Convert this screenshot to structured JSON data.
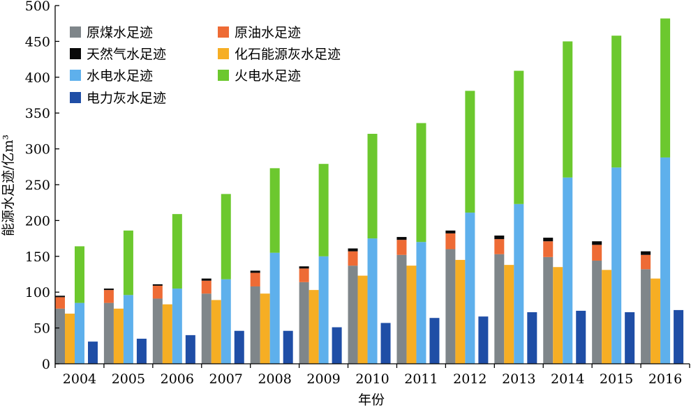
{
  "chart_data": {
    "type": "bar",
    "categories": [
      "2004",
      "2005",
      "2006",
      "2007",
      "2008",
      "2009",
      "2010",
      "2011",
      "2012",
      "2013",
      "2014",
      "2015",
      "2016"
    ],
    "xlabel": "年份",
    "ylabel": "能源水足迹/亿m³",
    "ylim": [
      0,
      500
    ],
    "yticks": [
      0,
      50,
      100,
      150,
      200,
      250,
      300,
      350,
      400,
      450,
      500
    ],
    "grid": false,
    "legend_position": "top-left",
    "legend": [
      {
        "key": "coal",
        "label": "原煤水足迹",
        "color": "#7f868a"
      },
      {
        "key": "oil",
        "label": "原油水足迹",
        "color": "#ee6b35"
      },
      {
        "key": "gas",
        "label": "天然气水足迹",
        "color": "#0a0a0a"
      },
      {
        "key": "fossil_grey",
        "label": "化石能源灰水足迹",
        "color": "#f6ae24"
      },
      {
        "key": "hydro",
        "label": "水电水足迹",
        "color": "#5eb0ec"
      },
      {
        "key": "thermal",
        "label": "火电水足迹",
        "color": "#6cc82e"
      },
      {
        "key": "power_grey",
        "label": "电力灰水足迹",
        "color": "#1f4ea6"
      }
    ],
    "series": [
      {
        "name": "原煤水足迹",
        "values": [
          77,
          85,
          91,
          98,
          108,
          114,
          137,
          152,
          160,
          153,
          149,
          144,
          132
        ]
      },
      {
        "name": "原油水足迹",
        "values": [
          16,
          18,
          18,
          18,
          19,
          19,
          20,
          21,
          22,
          21,
          22,
          22,
          20
        ]
      },
      {
        "name": "天然气水足迹",
        "values": [
          2,
          2,
          2,
          3,
          3,
          3,
          4,
          4,
          4,
          5,
          5,
          5,
          5
        ]
      },
      {
        "name": "化石能源灰水足迹",
        "values": [
          70,
          77,
          83,
          89,
          98,
          103,
          123,
          137,
          145,
          138,
          135,
          131,
          119
        ]
      },
      {
        "name": "水电水足迹",
        "values": [
          85,
          96,
          105,
          118,
          155,
          150,
          175,
          170,
          211,
          223,
          260,
          274,
          288
        ]
      },
      {
        "name": "火电水足迹",
        "values": [
          79,
          90,
          104,
          119,
          118,
          129,
          146,
          166,
          170,
          186,
          190,
          184,
          194
        ]
      },
      {
        "name": "电力灰水足迹",
        "values": [
          31,
          35,
          40,
          46,
          46,
          51,
          57,
          64,
          66,
          72,
          74,
          72,
          75
        ]
      }
    ]
  }
}
